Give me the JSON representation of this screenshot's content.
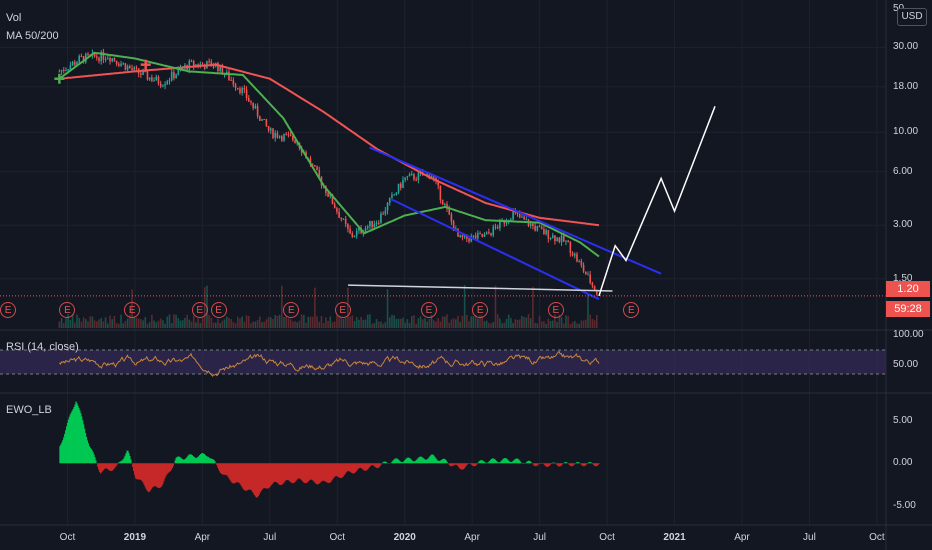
{
  "legend": {
    "vol": "Vol",
    "ma": "MA 50/200",
    "rsi": "RSI (14, close)",
    "ewo": "EWO_LB"
  },
  "currency_button": "USD",
  "price_tags": {
    "last_price": "1.20",
    "countdown": "59:28"
  },
  "price_axis_labels": [
    "30.00",
    "18.00",
    "10.00",
    "6.00",
    "3.00",
    "1.50"
  ],
  "price_axis_top_partial": "50",
  "rsi_axis_labels": [
    "100.00",
    "50.00"
  ],
  "ewo_axis_labels": [
    "5.00",
    "0.00",
    "-5.00"
  ],
  "time_axis": [
    {
      "label": "Oct",
      "bold": false
    },
    {
      "label": "2019",
      "bold": true
    },
    {
      "label": "Apr",
      "bold": false
    },
    {
      "label": "Jul",
      "bold": false
    },
    {
      "label": "Oct",
      "bold": false
    },
    {
      "label": "2020",
      "bold": true
    },
    {
      "label": "Apr",
      "bold": false
    },
    {
      "label": "Jul",
      "bold": false
    },
    {
      "label": "Oct",
      "bold": false
    },
    {
      "label": "2021",
      "bold": true
    },
    {
      "label": "Apr",
      "bold": false
    },
    {
      "label": "Jul",
      "bold": false
    },
    {
      "label": "Oct",
      "bold": false
    }
  ],
  "earnings_marker": "E",
  "earnings_count": 11,
  "colors": {
    "background": "#131722",
    "candle_up": "#26a69a",
    "candle_down": "#ef5350",
    "ma50": "#4caf50",
    "ma200": "#f05454",
    "trendline": "#2b2ff0",
    "support": "#d1d4dc",
    "rsi_line": "#c8853a",
    "rsi_band": "#3a2d63",
    "ewo_up": "#00c853",
    "ewo_down": "#c62828",
    "price_tag": "#ef5350"
  },
  "chart_data": {
    "type": "candlestick",
    "symbol_price_scale": "log",
    "price_range": [
      1.0,
      50.0
    ],
    "price_series_approx": [
      [
        2018.72,
        22
      ],
      [
        2018.8,
        26
      ],
      [
        2018.9,
        27
      ],
      [
        2019.0,
        22
      ],
      [
        2019.1,
        19
      ],
      [
        2019.2,
        24
      ],
      [
        2019.3,
        24
      ],
      [
        2019.4,
        17
      ],
      [
        2019.5,
        10
      ],
      [
        2019.6,
        9
      ],
      [
        2019.7,
        5
      ],
      [
        2019.8,
        2.6
      ],
      [
        2019.9,
        3.2
      ],
      [
        2020.0,
        5.5
      ],
      [
        2020.1,
        5.8
      ],
      [
        2020.2,
        2.5
      ],
      [
        2020.3,
        2.6
      ],
      [
        2020.4,
        3.5
      ],
      [
        2020.5,
        2.8
      ],
      [
        2020.6,
        2.4
      ],
      [
        2020.65,
        1.8
      ],
      [
        2020.72,
        1.2
      ]
    ],
    "last_price": 1.2,
    "ma50_approx": [
      [
        2018.72,
        20
      ],
      [
        2018.85,
        28
      ],
      [
        2019.0,
        26
      ],
      [
        2019.2,
        22
      ],
      [
        2019.4,
        21
      ],
      [
        2019.55,
        12
      ],
      [
        2019.7,
        5
      ],
      [
        2019.85,
        2.7
      ],
      [
        2020.0,
        3.4
      ],
      [
        2020.15,
        3.8
      ],
      [
        2020.3,
        3.2
      ],
      [
        2020.5,
        3.1
      ],
      [
        2020.65,
        2.4
      ],
      [
        2020.72,
        2.0
      ]
    ],
    "ma200_approx": [
      [
        2018.72,
        20
      ],
      [
        2019.0,
        22
      ],
      [
        2019.3,
        24
      ],
      [
        2019.5,
        20
      ],
      [
        2019.7,
        13
      ],
      [
        2019.9,
        8
      ],
      [
        2020.1,
        5.5
      ],
      [
        2020.3,
        4.0
      ],
      [
        2020.5,
        3.3
      ],
      [
        2020.72,
        3.0
      ]
    ],
    "projection_approx": [
      [
        2020.72,
        1.2
      ],
      [
        2020.78,
        2.3
      ],
      [
        2020.82,
        1.9
      ],
      [
        2020.95,
        5.5
      ],
      [
        2021.0,
        3.6
      ],
      [
        2021.15,
        14
      ]
    ],
    "rsi_axis": [
      0,
      100
    ],
    "rsi_bands": [
      30,
      70
    ],
    "ewo_axis": [
      -7,
      8
    ],
    "ewo_series_approx": [
      [
        2018.72,
        2
      ],
      [
        2018.78,
        7.5
      ],
      [
        2018.83,
        2
      ],
      [
        2018.87,
        -1
      ],
      [
        2018.93,
        -0.5
      ],
      [
        2018.97,
        1.5
      ],
      [
        2019.0,
        -1.5
      ],
      [
        2019.05,
        -3.2
      ],
      [
        2019.1,
        -2.5
      ],
      [
        2019.15,
        0.5
      ],
      [
        2019.2,
        0.8
      ],
      [
        2019.27,
        1.0
      ],
      [
        2019.33,
        -1.5
      ],
      [
        2019.45,
        -3.8
      ],
      [
        2019.5,
        -2.5
      ],
      [
        2019.6,
        -2.0
      ],
      [
        2019.7,
        -2.3
      ],
      [
        2019.8,
        -1.0
      ],
      [
        2019.9,
        -0.3
      ],
      [
        2019.95,
        0.3
      ],
      [
        2020.05,
        0.5
      ],
      [
        2020.1,
        0.8
      ],
      [
        2020.15,
        0.2
      ],
      [
        2020.2,
        -0.6
      ],
      [
        2020.3,
        0.3
      ],
      [
        2020.4,
        0.4
      ],
      [
        2020.5,
        -0.2
      ],
      [
        2020.6,
        -0.1
      ],
      [
        2020.72,
        -0.1
      ]
    ]
  }
}
